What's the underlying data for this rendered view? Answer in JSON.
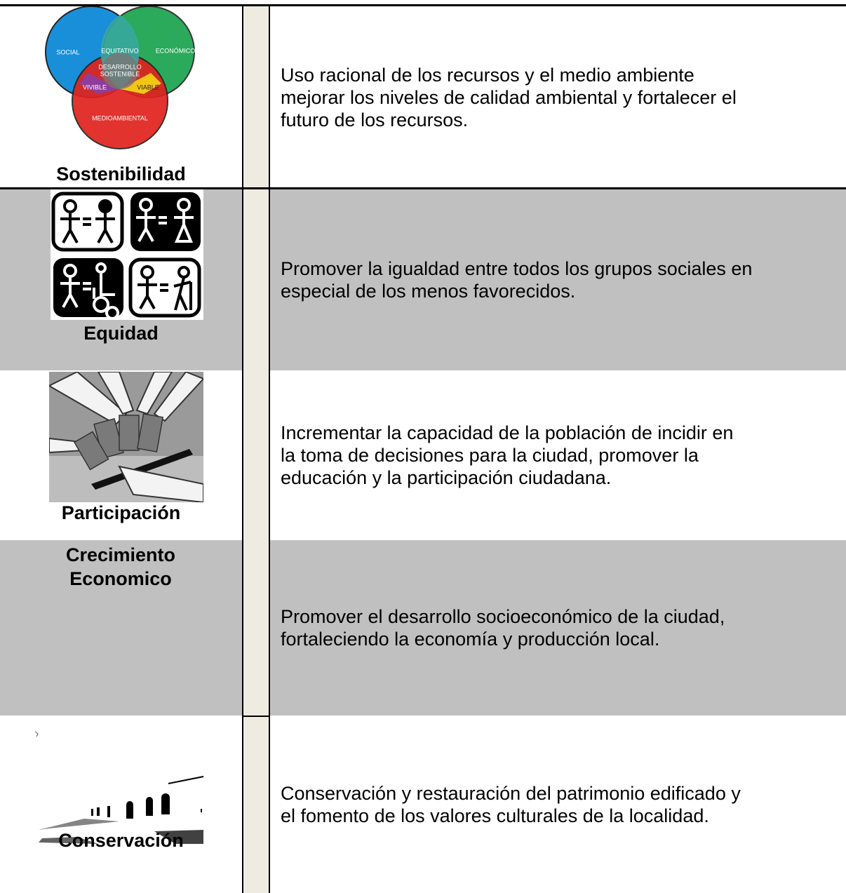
{
  "rows": [
    {
      "label": "Sostenibilidad",
      "description": [
        "Uso racional de los recursos y el medio ambiente",
        "mejorar los niveles de calidad ambiental y fortalecer el",
        "futuro de los recursos."
      ],
      "diagram": {
        "social": "SOCIAL",
        "equitativo": "EQUITATIVO",
        "economico": "ECONÓMICO",
        "centro": [
          "DESARROLLO",
          "SOSTENIBLE"
        ],
        "vivible": "VIVIBLE",
        "viable": "VIABLE",
        "medioambiental": "MEDIOAMBIENTAL"
      }
    },
    {
      "label": "Equidad",
      "description": [
        "Promover la igualdad entre todos los grupos sociales en",
        "especial de los menos favorecidos."
      ]
    },
    {
      "label": "Participación",
      "description": [
        "Incrementar la capacidad de la población de incidir en",
        "la toma de decisiones para la ciudad, promover la",
        "educación y la participación ciudadana."
      ]
    },
    {
      "label": "Crecimiento Economico",
      "description": [
        "Promover el desarrollo socioeconómico  de la ciudad,",
        "fortaleciendo la  economía y  producción local."
      ]
    },
    {
      "label": "Conservación",
      "description": [
        "Conservación y restauración del patrimonio edificado y",
        "el fomento de los valores culturales de la localidad."
      ]
    }
  ]
}
